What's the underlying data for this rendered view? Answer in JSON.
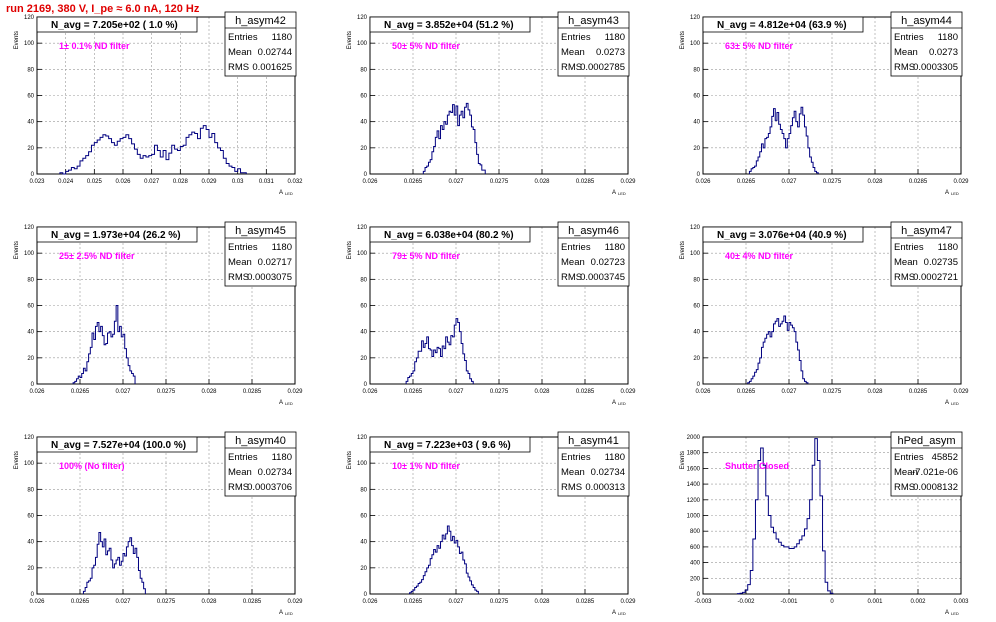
{
  "run_title": "run 2169,   380 V, I_pe ≈ 6.0 nA, 120 Hz",
  "common": {
    "ylabel": "Events",
    "xlabel_main": "A",
    "xlabel_sub": "LED",
    "stats_labels": [
      "Entries",
      "Mean",
      "RMS"
    ],
    "line_color": "#000080",
    "annotation_color": "#ff00ff"
  },
  "chart_data": [
    {
      "type": "bar",
      "name": "h_asym42",
      "title": "N_avg = 7.205e+02 ( 1.0 %)",
      "annotation": "1± 0.1% ND filter",
      "stats": {
        "entries": "1180",
        "mean": "0.02744",
        "rms": "0.001625"
      },
      "xlim": [
        0.023,
        0.032
      ],
      "ylim": [
        0,
        120
      ],
      "xticks": [
        0.023,
        0.024,
        0.025,
        0.026,
        0.027,
        0.028,
        0.029,
        0.03,
        0.031,
        0.032
      ],
      "xtick_labels": [
        "0.023",
        "0.024",
        "0.025",
        "0.026",
        "0.027",
        "0.028",
        "0.029",
        "0.03",
        "0.031",
        "0.032"
      ],
      "yticks": [
        0,
        20,
        40,
        60,
        80,
        100,
        120
      ],
      "bins": {
        "start": 0.0238,
        "width": 0.0001,
        "counts": [
          1,
          0,
          2,
          3,
          5,
          4,
          6,
          10,
          12,
          14,
          17,
          22,
          24,
          26,
          28,
          30,
          29,
          27,
          24,
          22,
          25,
          27,
          28,
          30,
          27,
          23,
          19,
          15,
          12,
          14,
          13,
          14,
          15,
          22,
          18,
          13,
          18,
          11,
          16,
          22,
          19,
          18,
          21,
          22,
          28,
          30,
          32,
          31,
          27,
          35,
          37,
          34,
          28,
          31,
          24,
          20,
          18,
          12,
          8,
          6,
          5,
          2,
          4,
          1,
          1
        ]
      }
    },
    {
      "type": "bar",
      "name": "h_asym43",
      "title": "N_avg = 3.852e+04 (51.2 %)",
      "annotation": "50± 5% ND filter",
      "stats": {
        "entries": "1180",
        "mean": "0.0273",
        "rms": "0.0002785"
      },
      "xlim": [
        0.026,
        0.029
      ],
      "ylim": [
        0,
        120
      ],
      "xticks": [
        0.026,
        0.0265,
        0.027,
        0.0275,
        0.028,
        0.0285,
        0.029
      ],
      "xtick_labels": [
        "0.026",
        "0.0265",
        "0.027",
        "0.0275",
        "0.028",
        "0.0285",
        "0.029"
      ],
      "yticks": [
        0,
        20,
        40,
        60,
        80,
        100,
        120
      ],
      "bins": {
        "start": 0.02662,
        "width": 2e-05,
        "counts": [
          2,
          5,
          6,
          9,
          11,
          17,
          21,
          28,
          33,
          27,
          37,
          34,
          40,
          38,
          45,
          48,
          47,
          53,
          45,
          52,
          37,
          45,
          48,
          43,
          51,
          54,
          49,
          45,
          36,
          34,
          24,
          15,
          8,
          7,
          3,
          3
        ]
      }
    },
    {
      "type": "bar",
      "name": "h_asym44",
      "title": "N_avg = 4.812e+04 (63.9 %)",
      "annotation": "63± 5% ND filter",
      "stats": {
        "entries": "1180",
        "mean": "0.0273",
        "rms": "0.0003305"
      },
      "xlim": [
        0.026,
        0.029
      ],
      "ylim": [
        0,
        120
      ],
      "xticks": [
        0.026,
        0.0265,
        0.027,
        0.0275,
        0.028,
        0.0285,
        0.029
      ],
      "xtick_labels": [
        "0.026",
        "0.0265",
        "0.027",
        "0.0275",
        "0.028",
        "0.0285",
        "0.029"
      ],
      "yticks": [
        0,
        20,
        40,
        60,
        80,
        100,
        120
      ],
      "bins": {
        "start": 0.02654,
        "width": 2e-05,
        "counts": [
          2,
          4,
          5,
          6,
          10,
          13,
          17,
          23,
          20,
          27,
          28,
          31,
          36,
          44,
          50,
          41,
          47,
          38,
          34,
          31,
          27,
          20,
          27,
          31,
          37,
          43,
          48,
          40,
          36,
          46,
          51,
          45,
          36,
          29,
          20,
          13,
          9,
          5,
          2,
          1
        ]
      }
    },
    {
      "type": "bar",
      "name": "h_asym45",
      "title": "N_avg = 1.973e+04 (26.2 %)",
      "annotation": "25± 2.5% ND filter",
      "stats": {
        "entries": "1180",
        "mean": "0.02717",
        "rms": "0.0003075"
      },
      "xlim": [
        0.026,
        0.029
      ],
      "ylim": [
        0,
        120
      ],
      "xticks": [
        0.026,
        0.0265,
        0.027,
        0.0275,
        0.028,
        0.0285,
        0.029
      ],
      "xtick_labels": [
        "0.026",
        "0.0265",
        "0.027",
        "0.0275",
        "0.028",
        "0.0285",
        "0.029"
      ],
      "yticks": [
        0,
        20,
        40,
        60,
        80,
        100,
        120
      ],
      "bins": {
        "start": 0.02642,
        "width": 2e-05,
        "counts": [
          1,
          2,
          4,
          6,
          5,
          8,
          12,
          10,
          17,
          23,
          28,
          39,
          34,
          44,
          47,
          40,
          44,
          37,
          30,
          31,
          39,
          40,
          36,
          38,
          48,
          60,
          40,
          44,
          36,
          38,
          27,
          20,
          14,
          10,
          8,
          6
        ]
      }
    },
    {
      "type": "bar",
      "name": "h_asym46",
      "title": "N_avg = 6.038e+04 (80.2 %)",
      "annotation": "79± 5% ND filter",
      "stats": {
        "entries": "1180",
        "mean": "0.02723",
        "rms": "0.0003745"
      },
      "xlim": [
        0.026,
        0.029
      ],
      "ylim": [
        0,
        120
      ],
      "xticks": [
        0.026,
        0.0265,
        0.027,
        0.0275,
        0.028,
        0.0285,
        0.029
      ],
      "xtick_labels": [
        "0.026",
        "0.0265",
        "0.027",
        "0.0275",
        "0.028",
        "0.0285",
        "0.029"
      ],
      "yticks": [
        0,
        20,
        40,
        60,
        80,
        100,
        120
      ],
      "bins": {
        "start": 0.02642,
        "width": 2e-05,
        "counts": [
          2,
          5,
          6,
          8,
          10,
          17,
          20,
          25,
          25,
          33,
          28,
          31,
          36,
          27,
          26,
          21,
          26,
          24,
          28,
          27,
          21,
          29,
          27,
          36,
          32,
          30,
          37,
          36,
          45,
          50,
          47,
          40,
          31,
          23,
          18,
          10,
          8,
          4,
          2
        ]
      }
    },
    {
      "type": "bar",
      "name": "h_asym47",
      "title": "N_avg = 3.076e+04 (40.9 %)",
      "annotation": "40± 4% ND filter",
      "stats": {
        "entries": "1180",
        "mean": "0.02735",
        "rms": "0.0002721"
      },
      "xlim": [
        0.026,
        0.029
      ],
      "ylim": [
        0,
        120
      ],
      "xticks": [
        0.026,
        0.0265,
        0.027,
        0.0275,
        0.028,
        0.0285,
        0.029
      ],
      "xtick_labels": [
        "0.026",
        "0.0265",
        "0.027",
        "0.0275",
        "0.028",
        "0.0285",
        "0.029"
      ],
      "yticks": [
        0,
        20,
        40,
        60,
        80,
        100,
        120
      ],
      "bins": {
        "start": 0.02652,
        "width": 2e-05,
        "counts": [
          1,
          2,
          4,
          6,
          9,
          11,
          16,
          20,
          28,
          32,
          35,
          38,
          40,
          36,
          40,
          46,
          48,
          50,
          44,
          46,
          48,
          52,
          47,
          41,
          47,
          45,
          43,
          40,
          32,
          26,
          18,
          10,
          4,
          2,
          1
        ]
      }
    },
    {
      "type": "bar",
      "name": "h_asym40",
      "title": "N_avg = 7.527e+04 (100.0 %)",
      "annotation": "100% (No filter)",
      "stats": {
        "entries": "1180",
        "mean": "0.02734",
        "rms": "0.0003706"
      },
      "xlim": [
        0.026,
        0.029
      ],
      "ylim": [
        0,
        120
      ],
      "xticks": [
        0.026,
        0.0265,
        0.027,
        0.0275,
        0.028,
        0.0285,
        0.029
      ],
      "xtick_labels": [
        "0.026",
        "0.0265",
        "0.027",
        "0.0275",
        "0.028",
        "0.0285",
        "0.029"
      ],
      "yticks": [
        0,
        20,
        40,
        60,
        80,
        100,
        120
      ],
      "bins": {
        "start": 0.02654,
        "width": 2e-05,
        "counts": [
          2,
          5,
          9,
          10,
          12,
          20,
          22,
          28,
          38,
          47,
          40,
          36,
          42,
          30,
          33,
          35,
          26,
          20,
          23,
          26,
          28,
          22,
          25,
          31,
          29,
          36,
          40,
          43,
          37,
          31,
          35,
          28,
          18,
          12,
          9,
          4
        ]
      }
    },
    {
      "type": "bar",
      "name": "h_asym41",
      "title": "N_avg = 7.223e+03 ( 9.6 %)",
      "annotation": "10± 1% ND filter",
      "stats": {
        "entries": "1180",
        "mean": "0.02734",
        "rms": "0.000313"
      },
      "xlim": [
        0.026,
        0.029
      ],
      "ylim": [
        0,
        120
      ],
      "xticks": [
        0.026,
        0.0265,
        0.027,
        0.0275,
        0.028,
        0.0285,
        0.029
      ],
      "xtick_labels": [
        "0.026",
        "0.0265",
        "0.027",
        "0.0275",
        "0.028",
        "0.0285",
        "0.029"
      ],
      "yticks": [
        0,
        20,
        40,
        60,
        80,
        100,
        120
      ],
      "bins": {
        "start": 0.02646,
        "width": 2e-05,
        "counts": [
          1,
          2,
          3,
          5,
          6,
          8,
          9,
          11,
          14,
          17,
          20,
          22,
          27,
          30,
          34,
          32,
          37,
          35,
          40,
          45,
          42,
          46,
          52,
          48,
          41,
          44,
          39,
          41,
          36,
          31,
          32,
          26,
          23,
          16,
          13,
          10,
          7,
          5,
          3,
          2
        ]
      }
    },
    {
      "type": "bar",
      "name": "hPed_asym",
      "title": "",
      "annotation": "Shutter Closed",
      "stats": {
        "entries": "45852",
        "mean": "-7.021e-06",
        "rms": "0.0008132"
      },
      "xlim": [
        -0.003,
        0.003
      ],
      "ylim": [
        0,
        2000
      ],
      "xticks": [
        -0.003,
        -0.002,
        -0.001,
        0,
        0.001,
        0.002,
        0.003
      ],
      "xtick_labels": [
        "-0.003",
        "-0.002",
        "-0.001",
        "0",
        "0.001",
        "0.002",
        "0.003"
      ],
      "yticks": [
        0,
        200,
        400,
        600,
        800,
        1000,
        1200,
        1400,
        1600,
        1800,
        2000
      ],
      "bins": {
        "start": -0.0022,
        "width": 6e-05,
        "counts": [
          5,
          10,
          20,
          50,
          120,
          300,
          700,
          1200,
          1700,
          1860,
          1640,
          1250,
          1000,
          850,
          780,
          700,
          660,
          620,
          600,
          600,
          580,
          580,
          600,
          640,
          690,
          740,
          830,
          960,
          1200,
          1640,
          1980,
          1700,
          1250,
          550,
          150,
          40,
          10
        ]
      }
    }
  ]
}
